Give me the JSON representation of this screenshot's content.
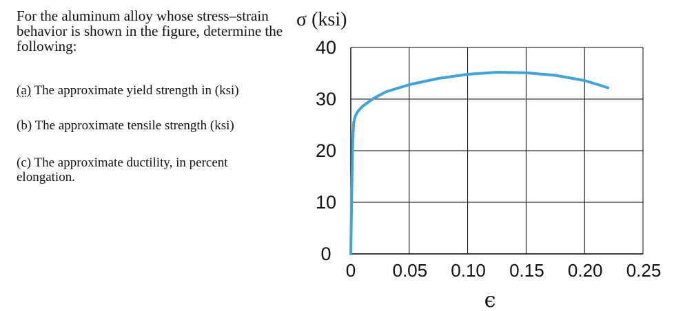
{
  "problem": {
    "intro": "For the aluminum alloy whose stress–strain behavior is shown in the figure, determine the following:",
    "questions": [
      {
        "prefix": "(a)",
        "text": "The approximate yield strength in (ksi)"
      },
      {
        "prefix": "(b)",
        "text": "The approximate tensile strength (ksi)"
      },
      {
        "prefix": "(c)",
        "text": "The approximate ductility, in percent elongation."
      }
    ]
  },
  "chart_data": {
    "type": "line",
    "title": "σ (ksi)",
    "xlabel": "ϵ",
    "ylabel": "σ (ksi)",
    "xlim": [
      0,
      0.25
    ],
    "ylim": [
      0,
      40
    ],
    "x_ticks": [
      "0",
      "0.05",
      "0.10",
      "0.15",
      "0.20",
      "0.25"
    ],
    "y_ticks": [
      "0",
      "10",
      "20",
      "30",
      "40"
    ],
    "grid": true,
    "colors": {
      "curve": "#3fa3dc",
      "grid": "#000000"
    },
    "series": [
      {
        "x": [
          0,
          0.0005,
          0.001,
          0.0015,
          0.002,
          0.0025,
          0.003,
          0.004,
          0.006,
          0.01,
          0.015,
          0.02,
          0.03,
          0.05,
          0.075,
          0.1,
          0.125,
          0.15,
          0.175,
          0.2,
          0.22
        ],
        "y": [
          0,
          7,
          14,
          20,
          23.5,
          25.3,
          26.0,
          26.8,
          27.6,
          28.6,
          29.4,
          30.2,
          31.4,
          32.8,
          34.0,
          34.8,
          35.2,
          35.1,
          34.6,
          33.6,
          32.2
        ]
      }
    ]
  }
}
